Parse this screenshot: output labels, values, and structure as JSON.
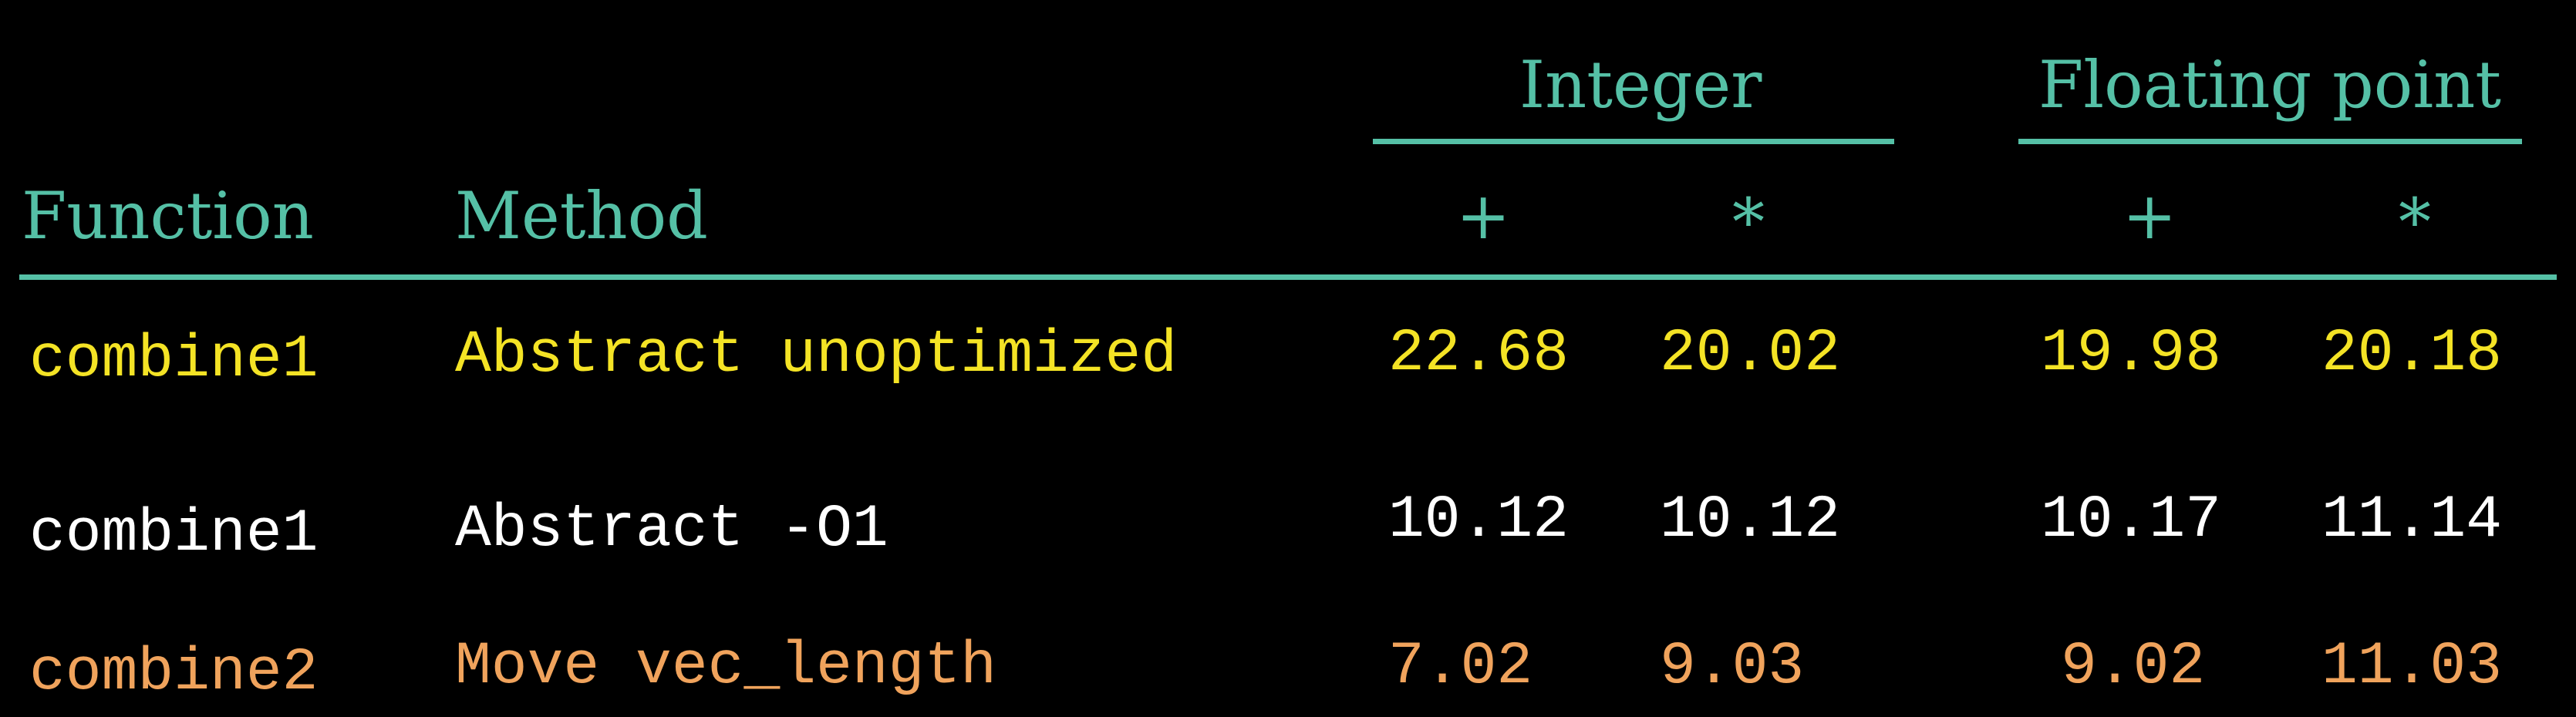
{
  "header": {
    "group_integer": "Integer",
    "group_float": "Floating point",
    "col_function": "Function",
    "col_method": "Method",
    "int_add": "+",
    "int_mul": "*",
    "fp_add": "+",
    "fp_mul": "*"
  },
  "rows": [
    {
      "function": "combine1",
      "method": "Abstract unoptimized",
      "int_add": "22.68",
      "int_mul": "20.02",
      "fp_add": "19.98",
      "fp_mul": "20.18"
    },
    {
      "function": "combine1",
      "method": "Abstract -O1",
      "int_add": "10.12",
      "int_mul": "10.12",
      "fp_add": "10.17",
      "fp_mul": "11.14"
    },
    {
      "function": "combine2",
      "method": "Move vec_length",
      "int_add": "7.02",
      "int_mul": "9.03",
      "fp_add": "9.02",
      "fp_mul": "11.03"
    }
  ],
  "colors": {
    "header": "#55c0a6",
    "row_1": "#f4e325",
    "row_2": "#ffffff",
    "row_3": "#f0a35c",
    "background": "#000000"
  }
}
